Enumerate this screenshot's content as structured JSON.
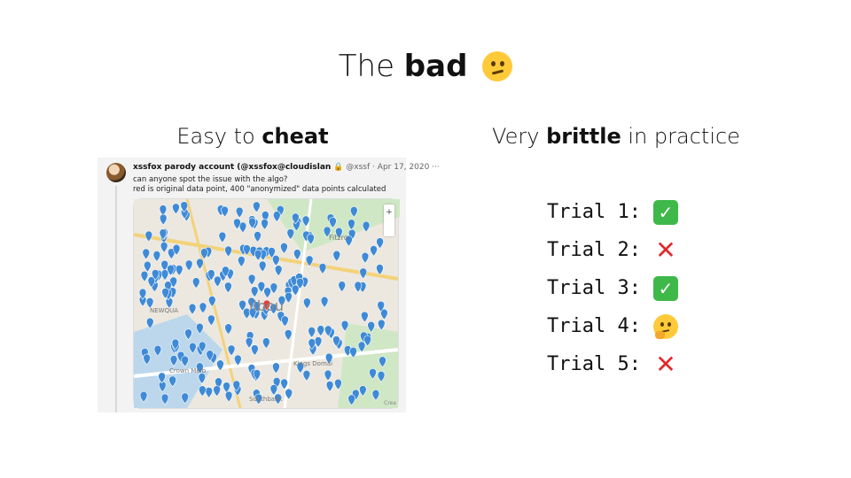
{
  "slide": {
    "title_prefix": "The ",
    "title_bold": "bad",
    "title_emoji": "confused-face-icon"
  },
  "left": {
    "heading_prefix": "Easy to ",
    "heading_bold": "cheat",
    "tweet": {
      "name": "xssfox parody account (@xssfox@cloudislan",
      "handle": "@xssf",
      "date": "Apr 17, 2020",
      "more": "···",
      "line1": "can anyone spot the issue with the algo?",
      "line2": "red is original data point, 400 \"anonymized\" data points  calculated",
      "map": {
        "labels": [
          "ilbou",
          "NEWQUA",
          "Fitzro",
          "Crown Melb",
          "Kings Domai",
          "Southbank"
        ],
        "zoom_plus": "+",
        "corner": "Crea"
      }
    }
  },
  "right": {
    "heading_prefix": "Very ",
    "heading_bold": "brittle",
    "heading_suffix": " in practice",
    "trials": [
      {
        "label": "Trial 1:",
        "result": "pass"
      },
      {
        "label": "Trial 2:",
        "result": "fail"
      },
      {
        "label": "Trial 3:",
        "result": "pass"
      },
      {
        "label": "Trial 4:",
        "result": "unsure"
      },
      {
        "label": "Trial 5:",
        "result": "fail"
      }
    ],
    "glyphs": {
      "pass": "✓",
      "fail": "✕"
    }
  }
}
